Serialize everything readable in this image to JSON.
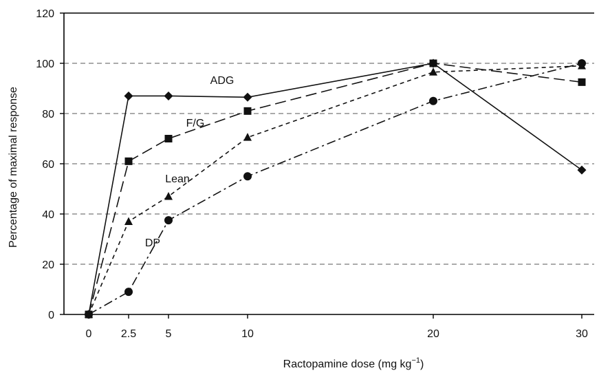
{
  "chart_data": {
    "type": "line",
    "xlabel": "Ractopamine dose (mg kg",
    "xlabel_sup": "−1",
    "xlabel_end": ")",
    "ylabel": "Percentage of maximal response",
    "x_ticks": [
      {
        "label": "0",
        "value": 0
      },
      {
        "label": "2.5",
        "value": 2.5
      },
      {
        "label": "5",
        "value": 5
      },
      {
        "label": "10",
        "value": 10
      },
      {
        "label": "20",
        "value": 20
      },
      {
        "label": "30",
        "value": 30
      }
    ],
    "x_scale": "ordinal",
    "ylim": [
      0,
      120
    ],
    "y_ticks": [
      0,
      20,
      40,
      60,
      80,
      100,
      120
    ],
    "gridlines": "horizontal dashed at 20–100",
    "series": [
      {
        "name": "ADG",
        "marker": "diamond",
        "dash": "solid",
        "values": [
          0,
          87,
          87,
          86.5,
          100,
          57.5
        ]
      },
      {
        "name": "F/G",
        "marker": "square",
        "dash": "long-dash",
        "values": [
          0,
          61,
          70,
          81,
          100,
          92.5
        ]
      },
      {
        "name": "Lean",
        "marker": "triangle",
        "dash": "short-dash",
        "values": [
          0,
          37,
          47,
          70.5,
          96.5,
          99
        ]
      },
      {
        "name": "DP",
        "marker": "circle",
        "dash": "dash-dot",
        "values": [
          0,
          9,
          37.5,
          55,
          85,
          100
        ]
      }
    ]
  }
}
